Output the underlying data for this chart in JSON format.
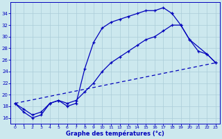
{
  "xlabel": "Graphe des températures (°c)",
  "x_ticks": [
    0,
    1,
    2,
    3,
    4,
    5,
    6,
    7,
    8,
    9,
    10,
    11,
    12,
    13,
    14,
    15,
    16,
    17,
    18,
    19,
    20,
    21,
    22,
    23
  ],
  "ylim": [
    15.0,
    36.0
  ],
  "yticks": [
    16,
    18,
    20,
    22,
    24,
    26,
    28,
    30,
    32,
    34
  ],
  "line_color": "#0000bb",
  "background_color": "#cce8ee",
  "grid_color": "#aaccd8",
  "line1_x": [
    0,
    1,
    2,
    3,
    4,
    5,
    6,
    7,
    8,
    9,
    10,
    11,
    12,
    13,
    14,
    15,
    16,
    17,
    18
  ],
  "line1_y": [
    18.5,
    17.0,
    16.0,
    16.5,
    18.5,
    19.0,
    18.0,
    18.5,
    24.5,
    29.0,
    31.5,
    32.5,
    33.0,
    33.5,
    34.0,
    34.5,
    34.5,
    35.0,
    34.0
  ],
  "line2_x": [
    0,
    1,
    2,
    3,
    4,
    5,
    6,
    7,
    8,
    9,
    10,
    11,
    12,
    13,
    14,
    15,
    16,
    17,
    18,
    19,
    20,
    21,
    22,
    23
  ],
  "line2_y": [
    18.5,
    17.5,
    16.5,
    17.0,
    18.5,
    19.0,
    18.5,
    19.0,
    20.5,
    22.0,
    24.0,
    25.5,
    26.5,
    27.5,
    28.5,
    29.5,
    30.0,
    31.0,
    32.0,
    32.0,
    29.5,
    27.5,
    27.0,
    25.5
  ],
  "line3_x": [
    0,
    23
  ],
  "line3_y": [
    18.5,
    25.5
  ],
  "close_x": [
    18,
    19,
    20,
    22,
    23
  ],
  "close_y": [
    34.0,
    32.0,
    29.5,
    27.0,
    25.5
  ]
}
